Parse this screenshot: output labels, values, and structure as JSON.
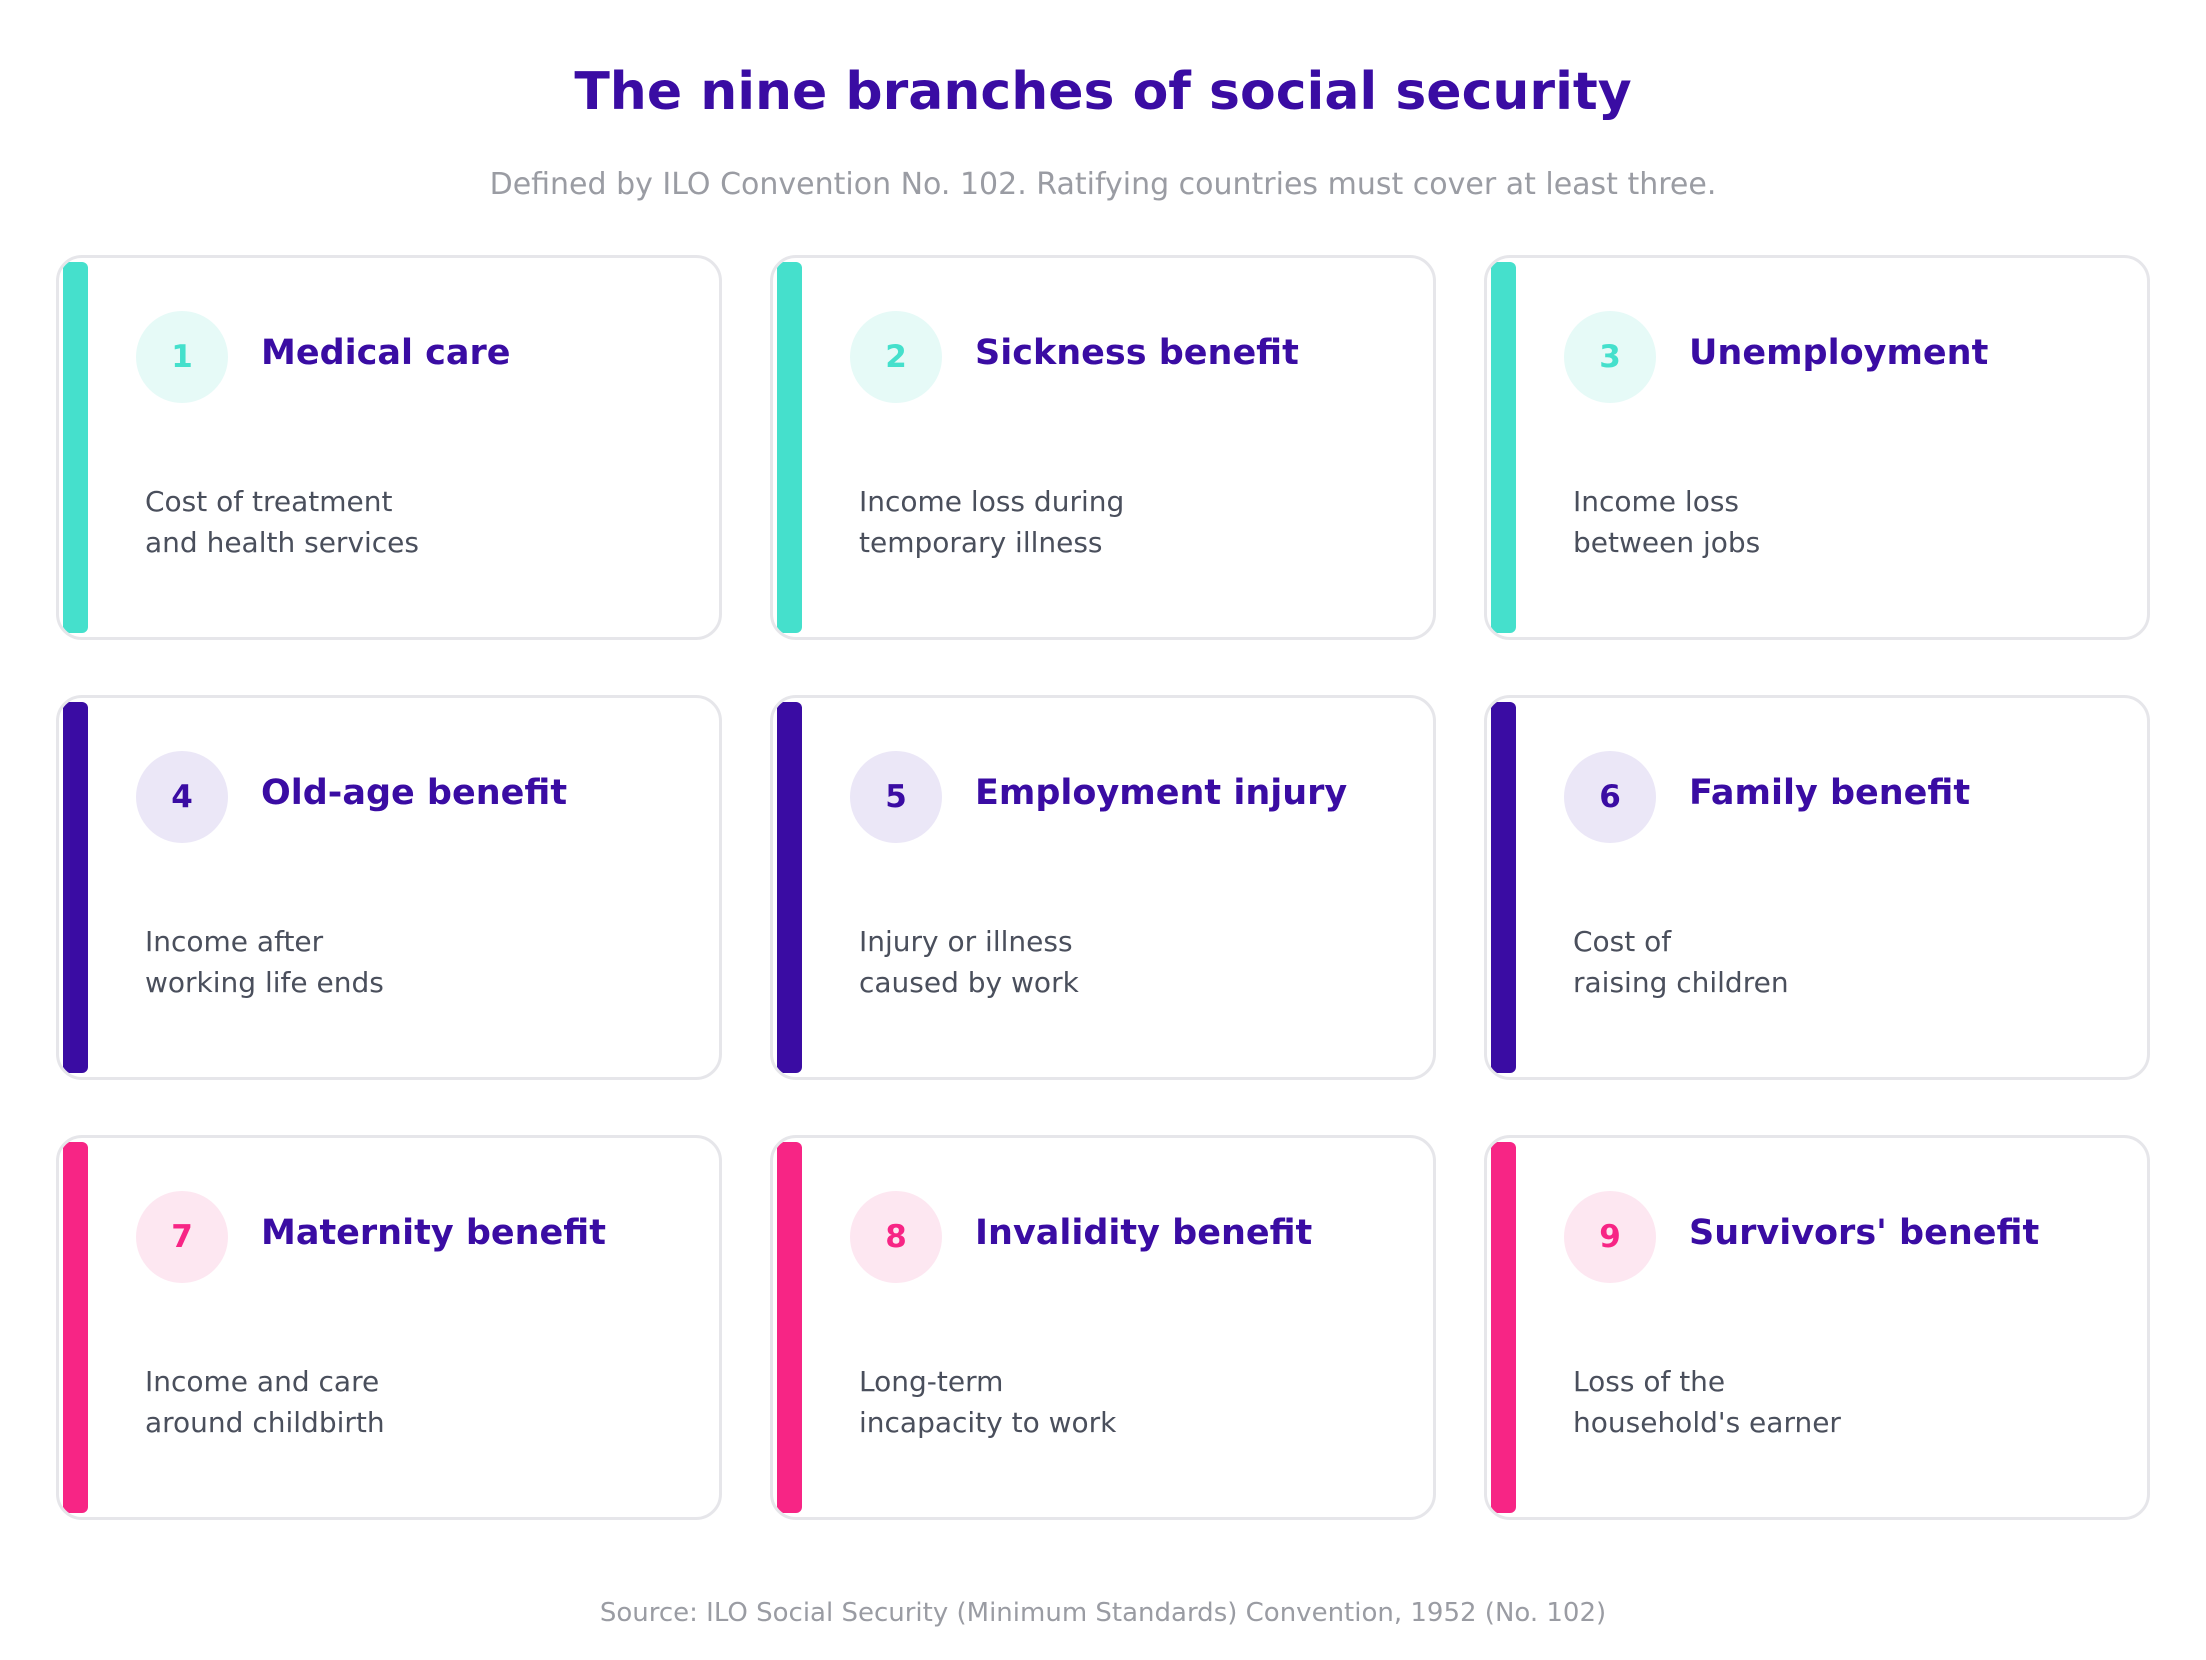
{
  "title": "The nine branches of social security",
  "subtitle": "Defined by ILO Convention No. 102. Ratifying countries must cover at least three.",
  "source": "Source: ILO Social Security (Minimum Standards) Convention, 1952 (No. 102)",
  "colors": {
    "teal": "#45e0cc",
    "purple": "#3a0ca3",
    "pink": "#f72585",
    "border": "#e6e6ea",
    "text": "#4a4f5c",
    "muted": "#9a9ca3"
  },
  "cards": [
    {
      "number": "1",
      "title": "Medical care",
      "desc_line1": "Cost of treatment",
      "desc_line2": "and health services",
      "color": "teal"
    },
    {
      "number": "2",
      "title": "Sickness benefit",
      "desc_line1": "Income loss during",
      "desc_line2": "temporary illness",
      "color": "teal"
    },
    {
      "number": "3",
      "title": "Unemployment",
      "desc_line1": "Income loss",
      "desc_line2": "between jobs",
      "color": "teal"
    },
    {
      "number": "4",
      "title": "Old-age benefit",
      "desc_line1": "Income after",
      "desc_line2": "working life ends",
      "color": "purple"
    },
    {
      "number": "5",
      "title": "Employment injury",
      "desc_line1": "Injury or illness",
      "desc_line2": "caused by work",
      "color": "purple"
    },
    {
      "number": "6",
      "title": "Family benefit",
      "desc_line1": "Cost of",
      "desc_line2": "raising children",
      "color": "purple"
    },
    {
      "number": "7",
      "title": "Maternity benefit",
      "desc_line1": "Income and care",
      "desc_line2": "around childbirth",
      "color": "pink"
    },
    {
      "number": "8",
      "title": "Invalidity benefit",
      "desc_line1": "Long-term",
      "desc_line2": "incapacity to work",
      "color": "pink"
    },
    {
      "number": "9",
      "title": "Survivors' benefit",
      "desc_line1": "Loss of the",
      "desc_line2": "household's earner",
      "color": "pink"
    }
  ]
}
